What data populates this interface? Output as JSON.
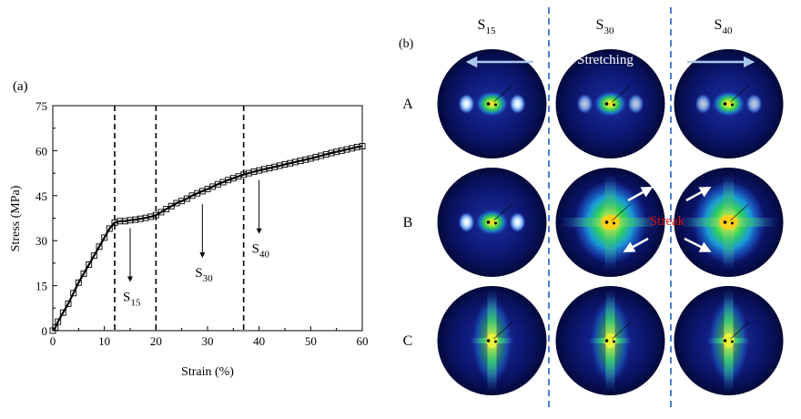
{
  "panel_a": {
    "label": "(a)",
    "chart_data": {
      "type": "line",
      "title": "",
      "xlabel": "Strain (%)",
      "ylabel": "Stress (MPa)",
      "xlim": [
        0,
        60
      ],
      "ylim": [
        0,
        75
      ],
      "xticks": [
        "0",
        "10",
        "20",
        "30",
        "40",
        "50",
        "60"
      ],
      "yticks": [
        "0",
        "15",
        "30",
        "45",
        "60",
        "75"
      ],
      "grid": false,
      "legend": "none",
      "marker": "open-square",
      "series": [
        {
          "x": [
            0,
            0.5,
            1,
            2,
            3,
            4,
            5,
            6,
            7,
            8,
            9,
            10,
            11,
            12,
            13,
            14,
            15,
            16,
            17,
            18,
            19,
            20,
            21,
            22,
            23,
            24,
            25,
            26,
            27,
            28,
            29,
            30,
            31,
            32,
            33,
            34,
            35,
            36,
            37,
            38,
            39,
            40,
            41,
            42,
            43,
            44,
            45,
            46,
            47,
            48,
            49,
            50,
            51,
            52,
            53,
            54,
            55,
            56,
            57,
            58,
            59,
            60
          ],
          "y": [
            0,
            1,
            3,
            6,
            9,
            12.5,
            16,
            19,
            22,
            25,
            28,
            31,
            34,
            36,
            36.5,
            36.5,
            36.8,
            37,
            37.3,
            37.6,
            38,
            38.5,
            39.5,
            40.5,
            41.5,
            42.5,
            43.2,
            44,
            45,
            45.8,
            46.5,
            47.2,
            48,
            48.8,
            49.5,
            50.2,
            50.8,
            51.4,
            52,
            52.5,
            53,
            53.4,
            53.8,
            54.2,
            54.6,
            55,
            55.4,
            55.8,
            56.2,
            56.6,
            57,
            57.4,
            57.8,
            58.3,
            58.8,
            59.2,
            59.6,
            60,
            60.4,
            60.8,
            61.2,
            61.5
          ]
        }
      ],
      "vlines": [
        12,
        20,
        37
      ],
      "annotations": [
        {
          "label": "S",
          "sub": "15",
          "x": 15,
          "y": 36
        },
        {
          "label": "S",
          "sub": "30",
          "x": 29,
          "y": 44
        },
        {
          "label": "S",
          "sub": "40",
          "x": 40,
          "y": 52
        }
      ]
    }
  },
  "panel_b": {
    "label": "(b)",
    "columns": [
      {
        "label": "S",
        "sub": "15"
      },
      {
        "label": "S",
        "sub": "30"
      },
      {
        "label": "S",
        "sub": "40"
      }
    ],
    "rows": [
      "A",
      "B",
      "C"
    ],
    "stretching_label": "Stretching",
    "streak_label": "Streak",
    "divider_color": "#4a7fd0",
    "streak_color": "#e01010",
    "arrow_color": "#ffffff",
    "stretch_arrow_color": "#a9c8ee",
    "patterns": [
      [
        "spots",
        "spots-faint",
        "spots-faint"
      ],
      [
        "spots",
        "cross-large",
        "cross-large"
      ],
      [
        "cross-thin",
        "cross-thin",
        "cross-thin"
      ]
    ]
  }
}
